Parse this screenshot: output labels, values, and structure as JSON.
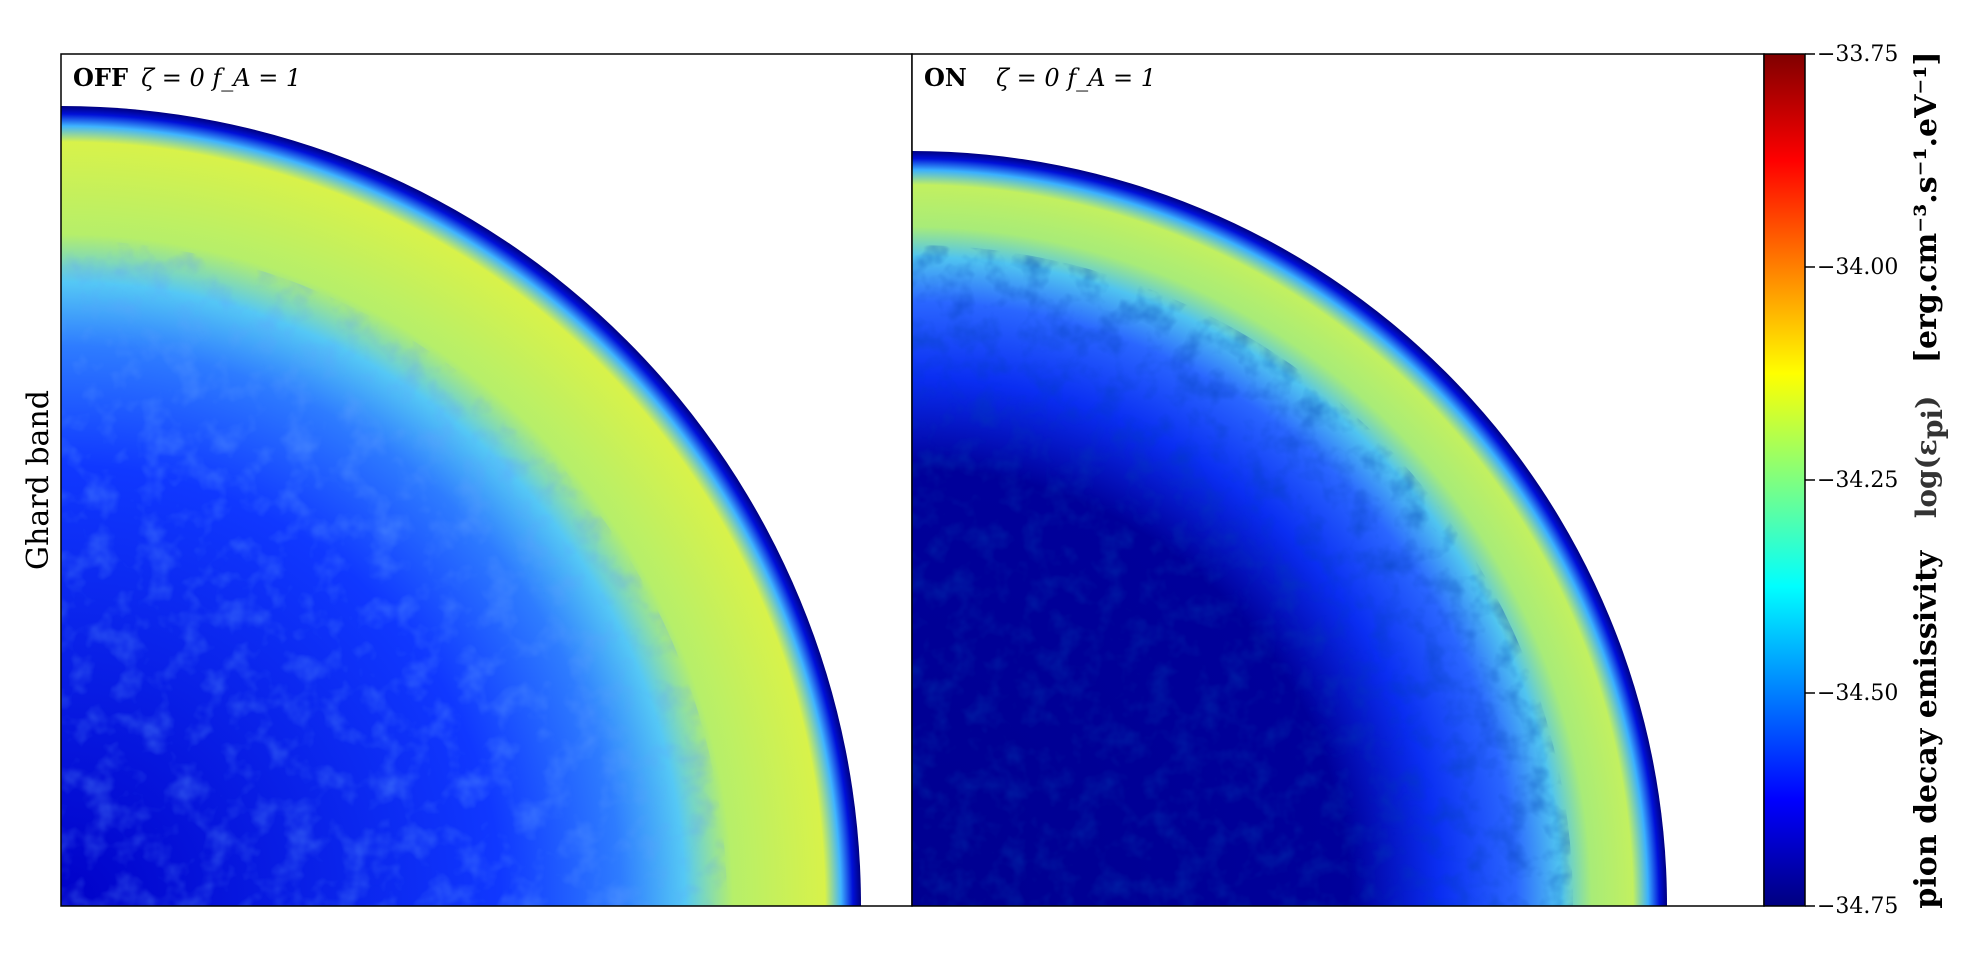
{
  "figure": {
    "row_label": "Ghard band"
  },
  "chart_data": [
    {
      "type": "heatmap",
      "panel_tag": "OFF",
      "panel_params": "ζ = 0 f_A = 1",
      "description_values": {
        "shell_outer_radius_fraction": 0.94,
        "shell_bright_inner_fraction": 0.77,
        "interior_base_level": -34.62,
        "shell_peak_level": -34.12
      }
    },
    {
      "type": "heatmap",
      "panel_tag": "ON",
      "panel_params": "ζ = 0 f_A = 1",
      "description_values": {
        "shell_outer_radius_fraction": 0.885,
        "shell_bright_inner_fraction": 0.8,
        "interior_base_level": -34.75,
        "shell_peak_level": -34.2
      }
    }
  ],
  "colorbar": {
    "colormap": "jet",
    "range": [
      -34.75,
      -33.75
    ],
    "ticks": [
      "−33.75",
      "−34.00",
      "−34.25",
      "−34.50",
      "−34.75"
    ],
    "tick_values": [
      -33.75,
      -34.0,
      -34.25,
      -34.5,
      -34.75
    ],
    "label_main": "pion decay emissivity",
    "label_symbol": "log(ε",
    "label_symbol_sub": "pi",
    "label_units": "[erg.cm⁻³.s⁻¹.eV⁻¹]"
  }
}
